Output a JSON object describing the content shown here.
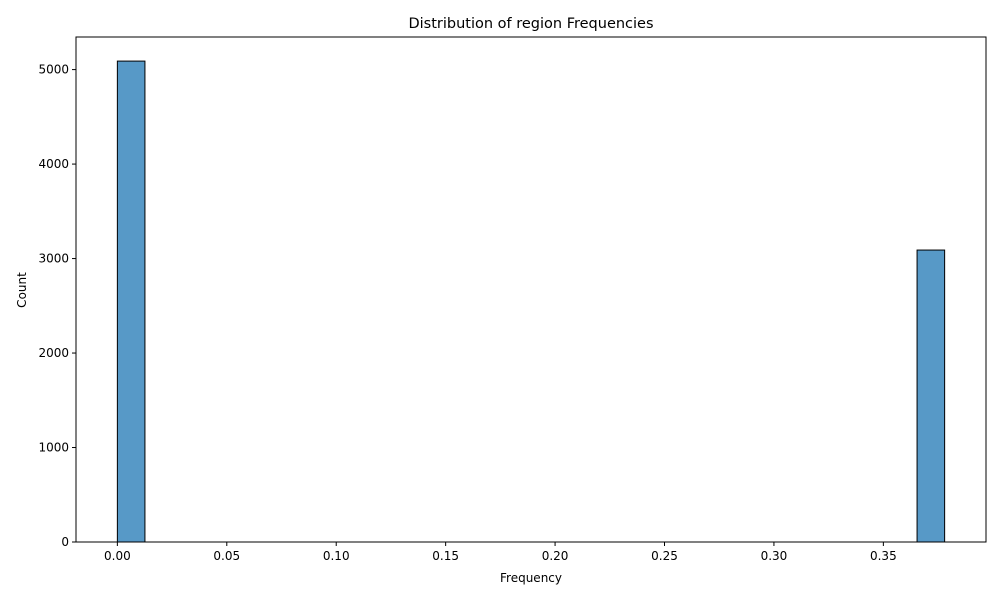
{
  "chart_data": {
    "type": "bar",
    "title": "Distribution of region Frequencies",
    "xlabel": "Frequency",
    "ylabel": "Count",
    "xlim": [
      -0.0189,
      0.3969
    ],
    "ylim": [
      0,
      5345
    ],
    "grid": false,
    "xticks": [
      0.0,
      0.05,
      0.1,
      0.15,
      0.2,
      0.25,
      0.3,
      0.35
    ],
    "xtick_labels": [
      "0.00",
      "0.05",
      "0.10",
      "0.15",
      "0.20",
      "0.25",
      "0.30",
      "0.35"
    ],
    "yticks": [
      0,
      1000,
      2000,
      3000,
      4000,
      5000
    ],
    "ytick_labels": [
      "0",
      "1000",
      "2000",
      "3000",
      "4000",
      "5000"
    ],
    "bars": [
      {
        "x0": 0.0,
        "x1": 0.0126,
        "count": 5090
      },
      {
        "x0": 0.3654,
        "x1": 0.378,
        "count": 3090
      }
    ],
    "bar_color": "#5799c7",
    "bar_edge_color": "#000000"
  }
}
